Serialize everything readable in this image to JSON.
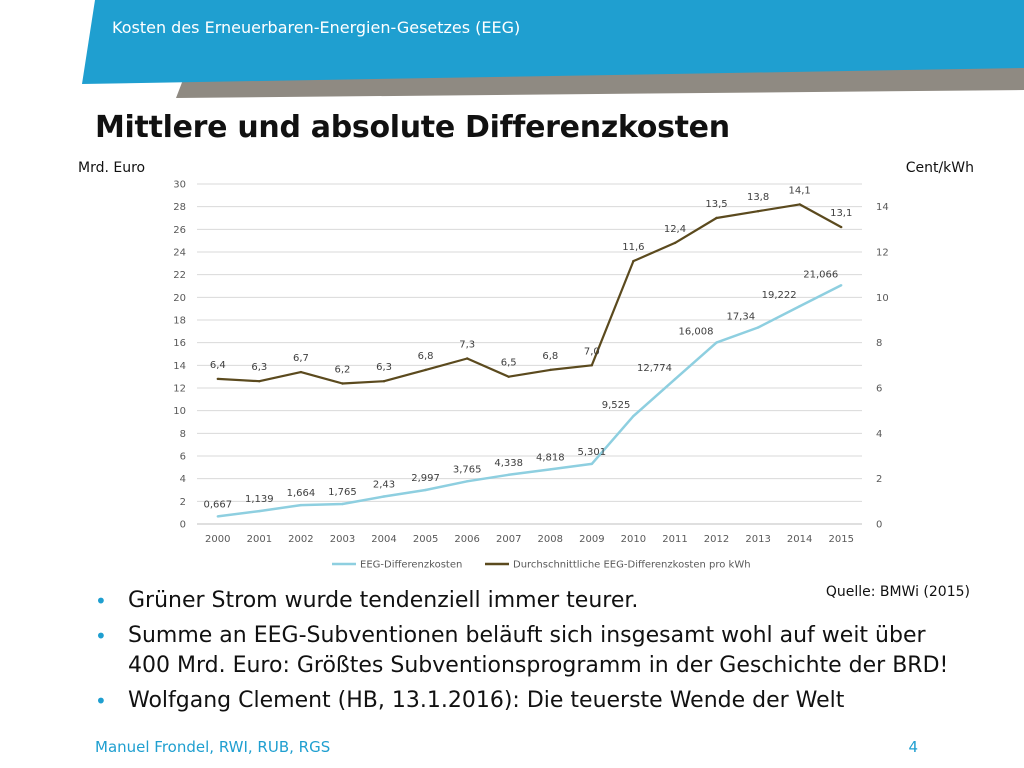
{
  "header": {
    "title": "Kosten des  Erneuerbaren-Energien-Gesetzes (EEG)"
  },
  "page": {
    "title": "Mittlere und absolute Differenzkosten"
  },
  "chart_data": {
    "type": "line",
    "categories": [
      "2000",
      "2001",
      "2002",
      "2003",
      "2004",
      "2005",
      "2006",
      "2007",
      "2008",
      "2009",
      "2010",
      "2011",
      "2012",
      "2013",
      "2014",
      "2015"
    ],
    "y_left": {
      "label": "Mrd. Euro",
      "range": [
        0,
        30
      ],
      "ticks": [
        "0",
        "2",
        "4",
        "6",
        "8",
        "10",
        "12",
        "14",
        "16",
        "18",
        "20",
        "22",
        "24",
        "26",
        "28",
        "30"
      ]
    },
    "y_right": {
      "label": "Cent/kWh",
      "range": [
        0,
        15
      ],
      "ticks": [
        "0",
        "2",
        "4",
        "6",
        "8",
        "10",
        "12",
        "14"
      ]
    },
    "grid": true,
    "legend_position": "bottom",
    "series": [
      {
        "name": "EEG-Differenzkosten",
        "axis": "left",
        "color": "#8ecfe0",
        "values": [
          0.667,
          1.139,
          1.664,
          1.765,
          2.43,
          2.997,
          3.765,
          4.338,
          4.818,
          5.301,
          9.525,
          12.774,
          16.008,
          17.34,
          19.222,
          21.066
        ],
        "labels": [
          "0,667",
          "1,139",
          "1,664",
          "1,765",
          "2,43",
          "2,997",
          "3,765",
          "4,338",
          "4,818",
          "5,301",
          "9,525",
          "12,774",
          "16,008",
          "17,34",
          "19,222",
          "21,066"
        ]
      },
      {
        "name": "Durchschnittliche EEG-Differenzkosten pro kWh",
        "axis": "right",
        "color": "#5b4a1e",
        "values": [
          6.4,
          6.3,
          6.7,
          6.2,
          6.3,
          6.8,
          7.3,
          6.5,
          6.8,
          7.0,
          11.6,
          12.4,
          13.5,
          13.8,
          14.1,
          13.1
        ],
        "labels": [
          "6,4",
          "6,3",
          "6,7",
          "6,2",
          "6,3",
          "6,8",
          "7,3",
          "6,5",
          "6,8",
          "7,0",
          "11,6",
          "12,4",
          "13,5",
          "13,8",
          "14,1",
          "13,1"
        ]
      }
    ],
    "source": "Quelle: BMWi (2015)"
  },
  "bullets": [
    "Grüner Strom wurde tendenziell immer teurer.",
    "Summe an EEG-Subventionen beläuft sich insgesamt wohl auf weit über 400 Mrd. Euro: Größtes Subventionsprogramm in der Geschichte der BRD!",
    "Wolfgang Clement (HB, 13.1.2016): Die teuerste Wende der Welt"
  ],
  "bullet_symbol": "•",
  "footer": {
    "author": "Manuel Frondel, RWI, RUB, RGS",
    "page_number": "4"
  },
  "colors": {
    "banner_blue": "#1f9fd0",
    "banner_gray": "#8f8a82",
    "accent": "#1f9fd0"
  }
}
